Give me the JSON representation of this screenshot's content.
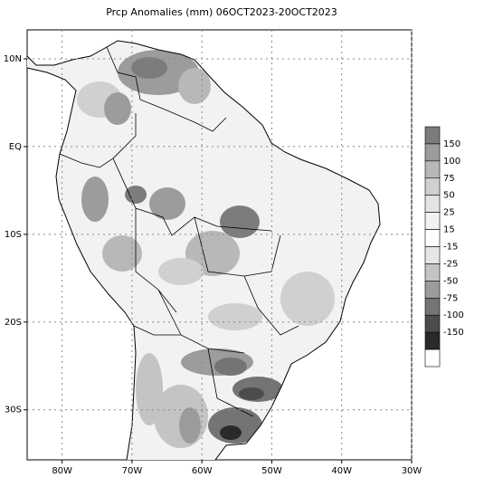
{
  "map": {
    "title": "Prcp Anomalies (mm) 06OCT2023-20OCT2023",
    "xlim": [
      -85,
      -30
    ],
    "ylim": [
      -35.7,
      13.3
    ],
    "xticks": [
      {
        "value": -80,
        "label": "80W"
      },
      {
        "value": -70,
        "label": "70W"
      },
      {
        "value": -60,
        "label": "60W"
      },
      {
        "value": -50,
        "label": "50W"
      },
      {
        "value": -40,
        "label": "40W"
      },
      {
        "value": -30,
        "label": "30W"
      }
    ],
    "yticks": [
      {
        "value": 10,
        "label": "10N"
      },
      {
        "value": 0,
        "label": "EQ"
      },
      {
        "value": -10,
        "label": "10S"
      },
      {
        "value": -20,
        "label": "20S"
      },
      {
        "value": -30,
        "label": "30S"
      }
    ],
    "grid": true,
    "legend": {
      "labels": [
        "150",
        "100",
        "75",
        "50",
        "25",
        "15",
        "-15",
        "-25",
        "-50",
        "-75",
        "-100",
        "-150"
      ],
      "colors": [
        "#7c7c7c",
        "#9c9c9c",
        "#b8b8b8",
        "#d0d0d0",
        "#e4e4e4",
        "#f2f2f2",
        "#ffffff",
        "#e6e6e6",
        "#c4c4c4",
        "#9c9c9c",
        "#747474",
        "#4c4c4c",
        "#2a2a2a",
        "#ffffff"
      ]
    }
  }
}
